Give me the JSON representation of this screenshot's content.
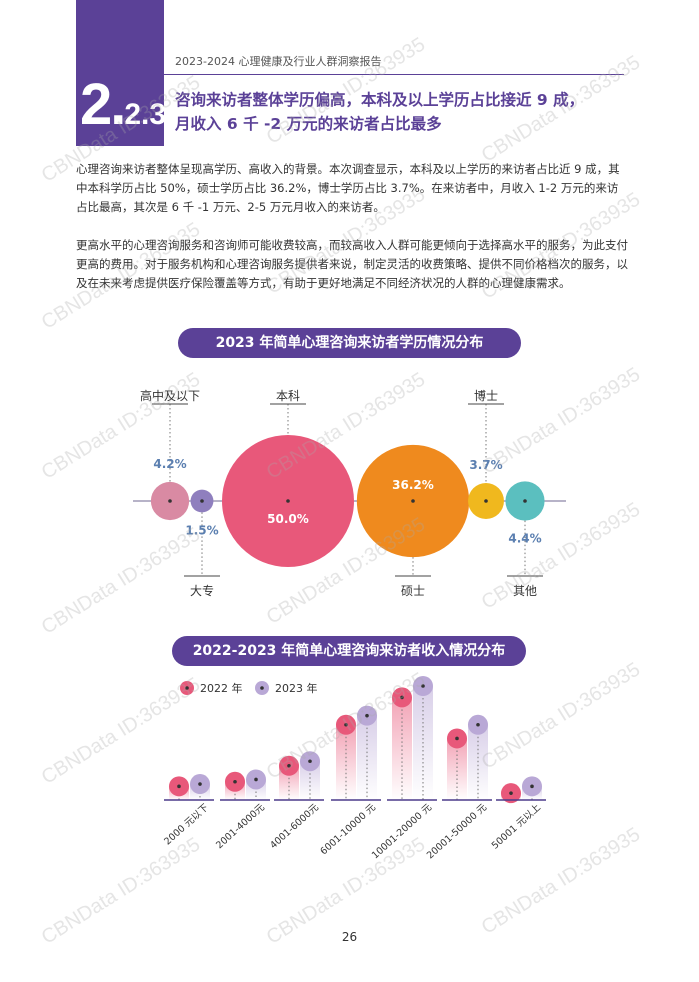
{
  "header": {
    "report_title": "2023-2024 心理健康及行业人群洞察报告",
    "section_number_major": "2.",
    "section_number_minor": "2.3",
    "headline_line1": "咨询来访者整体学历偏高，本科及以上学历占比接近 9 成，",
    "headline_line2": "月收入 6 千 -2 万元的来访者占比最多"
  },
  "paragraphs": [
    "心理咨询来访者整体呈现高学历、高收入的背景。本次调查显示，本科及以上学历的来访者占比近 9 成，其中本科学历占比 50%，硕士学历占比 36.2%，博士学历占比 3.7%。在来访者中，月收入 1-2 万元的来访占比最高，其次是 6 千 -1 万元、2-5 万元月收入的来访者。",
    "更高水平的心理咨询服务和咨询师可能收费较高，而较高收入人群可能更倾向于选择高水平的服务，为此支付更高的费用。对于服务机构和心理咨询服务提供者来说，制定灵活的收费策略、提供不同价格档次的服务，以及在未来考虑提供医疗保险覆盖等方式，有助于更好地满足不同经济状况的人群的心理健康需求。"
  ],
  "watermark_text": "CBNData ID:363935",
  "page_number": "26",
  "chart_data": [
    {
      "type": "bubble",
      "title": "2023 年简单心理咨询来访者学历情况分布",
      "categories": [
        "高中及以下",
        "大专",
        "本科",
        "硕士",
        "博士",
        "其他"
      ],
      "values": [
        4.2,
        1.5,
        50.0,
        36.2,
        3.7,
        4.4
      ],
      "value_labels": [
        "4.2%",
        "1.5%",
        "50.0%",
        "36.2%",
        "3.7%",
        "4.4%"
      ],
      "colors": [
        "#d98aa3",
        "#8f7fbe",
        "#e8587a",
        "#ef8a1e",
        "#f0b81e",
        "#5bbfbf"
      ]
    },
    {
      "type": "bar",
      "title": "2022-2023 年简单心理咨询来访者收入情况分布",
      "categories": [
        "2000 元以下",
        "2001-4000元",
        "4001-6000元",
        "6001-10000 元",
        "10001-20000 元",
        "20001-50000 元",
        "50001 元以上"
      ],
      "series": [
        {
          "name": "2022 年",
          "color": "#e8587a",
          "values": [
            6,
            8,
            15,
            33,
            45,
            27,
            3
          ]
        },
        {
          "name": "2023 年",
          "color": "#b9a8d6",
          "values": [
            7,
            9,
            17,
            37,
            50,
            33,
            6
          ]
        }
      ]
    }
  ]
}
